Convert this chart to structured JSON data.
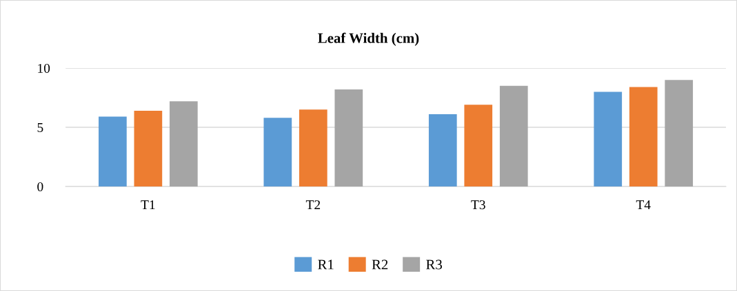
{
  "chart_data": {
    "type": "bar",
    "title": "Leaf Width (cm)",
    "categories": [
      "T1",
      "T2",
      "T3",
      "T4"
    ],
    "series": [
      {
        "name": "R1",
        "color": "#5b9bd5",
        "values": [
          5.9,
          5.8,
          6.1,
          8.0
        ]
      },
      {
        "name": "R2",
        "color": "#ed7d31",
        "values": [
          6.4,
          6.5,
          6.9,
          8.4
        ]
      },
      {
        "name": "R3",
        "color": "#a5a5a5",
        "values": [
          7.2,
          8.2,
          8.5,
          9.0
        ]
      }
    ],
    "ylim": [
      0,
      10
    ],
    "yticks": [
      0,
      5,
      10
    ],
    "grid": "y",
    "legend": "bottom"
  }
}
